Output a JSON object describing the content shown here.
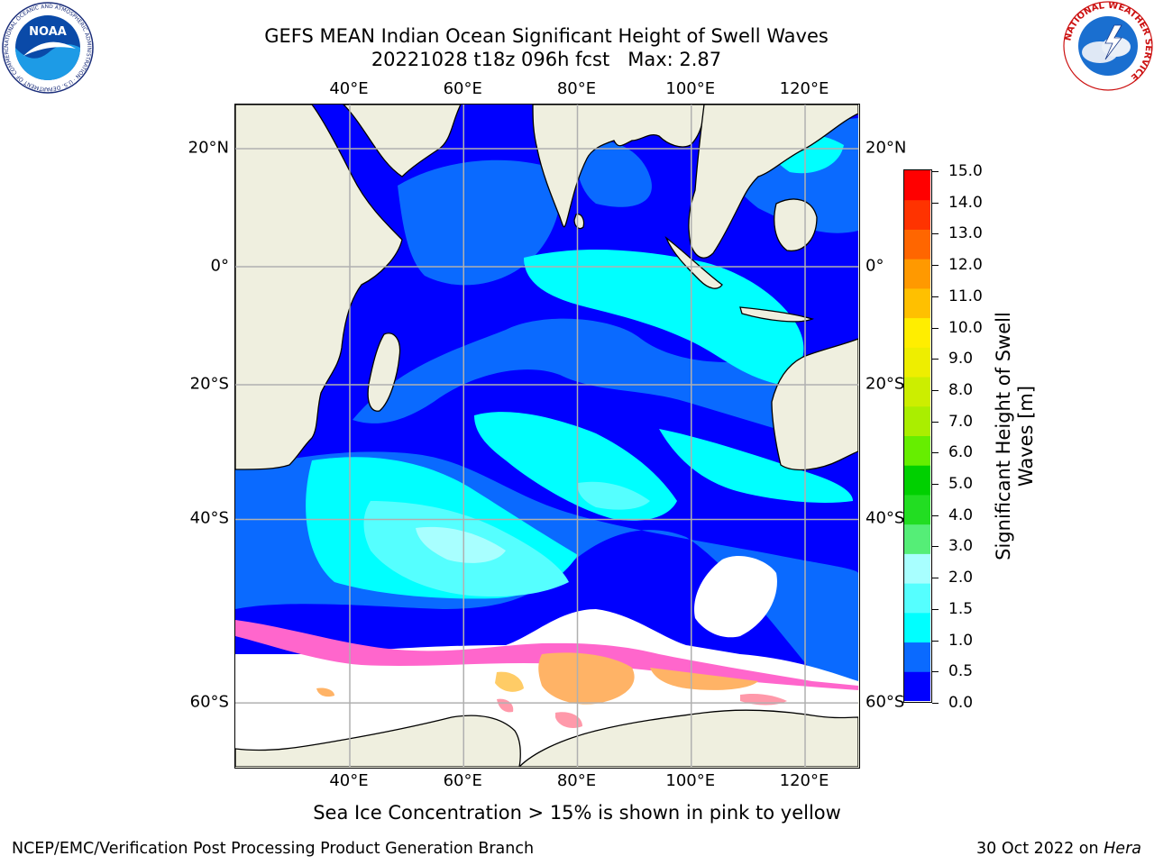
{
  "title_line1": "GEFS MEAN Indian Ocean Significant Height of Swell Waves",
  "title_line2": "20221028 t18z 096h fcst   Max: 2.87",
  "logos": {
    "noaa_text": "NOAA",
    "noaa_ring_text": "NATIONAL OCEANIC AND ATMOSPHERIC ADMINISTRATION · U.S. DEPARTMENT OF COMMERCE",
    "nws_ring_text": "NATIONAL WEATHER SERVICE"
  },
  "map": {
    "lon_labels": [
      "40°E",
      "60°E",
      "80°E",
      "100°E",
      "120°E"
    ],
    "lon_values": [
      40,
      60,
      80,
      100,
      120
    ],
    "lat_labels": [
      "20°N",
      "0°",
      "20°S",
      "40°S",
      "60°S"
    ],
    "lat_values": [
      20,
      0,
      -20,
      -40,
      -60
    ],
    "colors": {
      "land": "#efefdf",
      "sea_ice": "#ffffff",
      "gridline": "#b0b0b0"
    }
  },
  "colorbar": {
    "label": "Significant Height of Swell Waves [m]",
    "ticks": [
      "15.0",
      "14.0",
      "13.0",
      "12.0",
      "11.0",
      "10.0",
      "9.0",
      "8.0",
      "7.0",
      "6.0",
      "5.0",
      "4.0",
      "3.0",
      "2.0",
      "1.5",
      "1.0",
      "0.5",
      "0.0"
    ],
    "bands": [
      {
        "color": "#0000ff"
      },
      {
        "color": "#0a6aff"
      },
      {
        "color": "#00ffff"
      },
      {
        "color": "#55ffff"
      },
      {
        "color": "#a8ffff"
      },
      {
        "color": "#55ee77"
      },
      {
        "color": "#22dd22"
      },
      {
        "color": "#00d000"
      },
      {
        "color": "#66ee00"
      },
      {
        "color": "#aaee00"
      },
      {
        "color": "#ccee00"
      },
      {
        "color": "#eeee00"
      },
      {
        "color": "#ffee00"
      },
      {
        "color": "#ffc000"
      },
      {
        "color": "#ff9900"
      },
      {
        "color": "#ff6600"
      },
      {
        "color": "#ff3300"
      },
      {
        "color": "#ff0000"
      }
    ]
  },
  "note": "Sea Ice Concentration > 15% is shown in pink to yellow",
  "footer": {
    "left": "NCEP/EMC/Verification Post Processing Product Generation Branch",
    "right_prefix": "30 Oct 2022 on ",
    "right_host": "Hera"
  }
}
